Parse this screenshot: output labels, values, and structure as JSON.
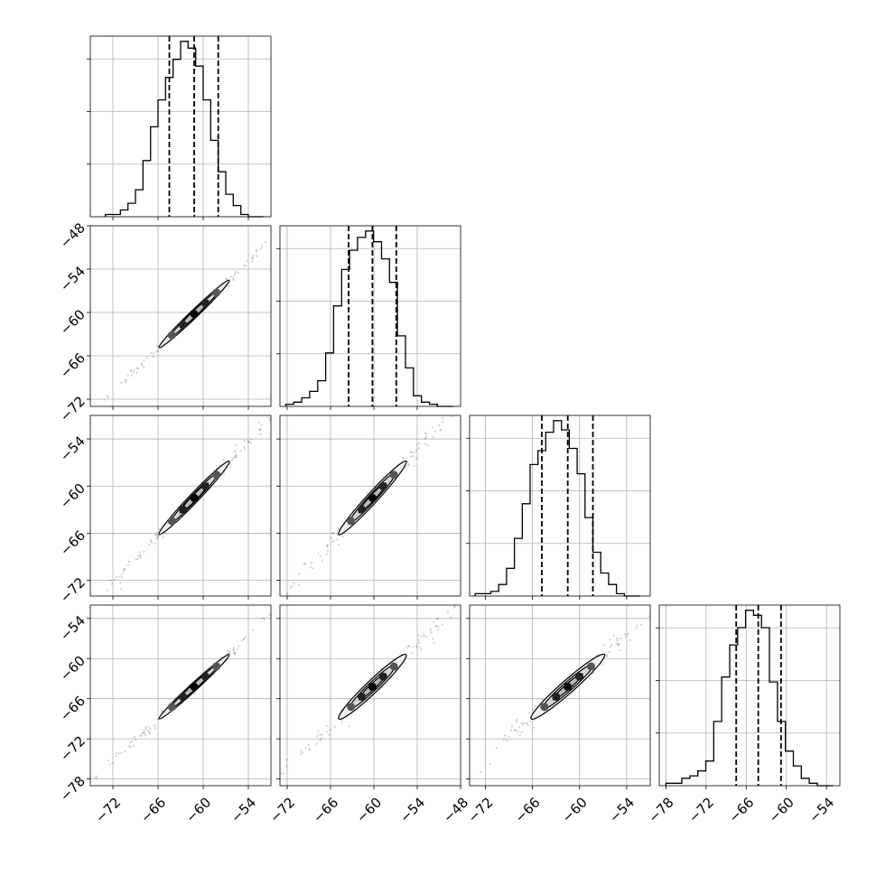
{
  "chart_data": {
    "type": "corner",
    "grid": true,
    "n_params": 4,
    "title": "",
    "axis_labels": [
      "",
      "",
      "",
      ""
    ],
    "ranges": [
      [
        -75,
        -51
      ],
      [
        -73,
        -48
      ],
      [
        -74,
        -51
      ],
      [
        -79,
        -52
      ]
    ],
    "ticks": [
      {
        "values": [
          -72,
          -66,
          -60,
          -54
        ],
        "labels": [
          "−72",
          "−66",
          "−60",
          "−54"
        ]
      },
      {
        "values": [
          -72,
          -66,
          -60,
          -54,
          -48
        ],
        "labels": [
          "−72",
          "−66",
          "−60",
          "−54",
          "−48"
        ]
      },
      {
        "values": [
          -72,
          -66,
          -60,
          -54
        ],
        "labels": [
          "−72",
          "−66",
          "−60",
          "−54"
        ]
      },
      {
        "values": [
          -78,
          -72,
          -66,
          -60,
          -54
        ],
        "labels": [
          "−78",
          "−72",
          "−66",
          "−60",
          "−54"
        ]
      }
    ],
    "quantiles": [
      [
        -64.5,
        -61.2,
        -58.0
      ],
      [
        -63.5,
        -60.2,
        -56.9
      ],
      [
        -64.8,
        -61.5,
        -58.3
      ],
      [
        -67.5,
        -64.2,
        -60.8
      ]
    ],
    "histograms": [
      {
        "edges_range": [
          -73.0,
          -52.0
        ],
        "counts": [
          1,
          1,
          3,
          6,
          12,
          25,
          40,
          52,
          62,
          70,
          78,
          75,
          67,
          52,
          34,
          20,
          10,
          5,
          1,
          0,
          0
        ]
      },
      {
        "edges_range": [
          -72.2,
          -49.0
        ],
        "counts": [
          1,
          2,
          4,
          7,
          12,
          25,
          47,
          64,
          73,
          79,
          82,
          77,
          69,
          58,
          33,
          18,
          5,
          2,
          1,
          0,
          0
        ]
      },
      {
        "edges_range": [
          -73.3,
          -52.3
        ],
        "counts": [
          1,
          1,
          2,
          5,
          12,
          25,
          40,
          57,
          63,
          71,
          76,
          72,
          64,
          53,
          34,
          19,
          10,
          5,
          1,
          0,
          0
        ]
      },
      {
        "edges_range": [
          -78.0,
          -53.0
        ],
        "counts": [
          1,
          1,
          3,
          4,
          6,
          10,
          26,
          44,
          57,
          64,
          71,
          69,
          64,
          42,
          26,
          14,
          8,
          3,
          1,
          0,
          0
        ]
      }
    ],
    "means": [
      -61.2,
      -60.2,
      -61.5,
      -64.2
    ],
    "sigmas": [
      3.3,
      3.3,
      3.3,
      3.4
    ],
    "correlations": [
      [
        1.0,
        0.995,
        0.993,
        0.995
      ],
      [
        0.995,
        1.0,
        0.99,
        0.985
      ],
      [
        0.993,
        0.99,
        1.0,
        0.985
      ],
      [
        0.995,
        0.985,
        0.985,
        1.0
      ]
    ]
  }
}
